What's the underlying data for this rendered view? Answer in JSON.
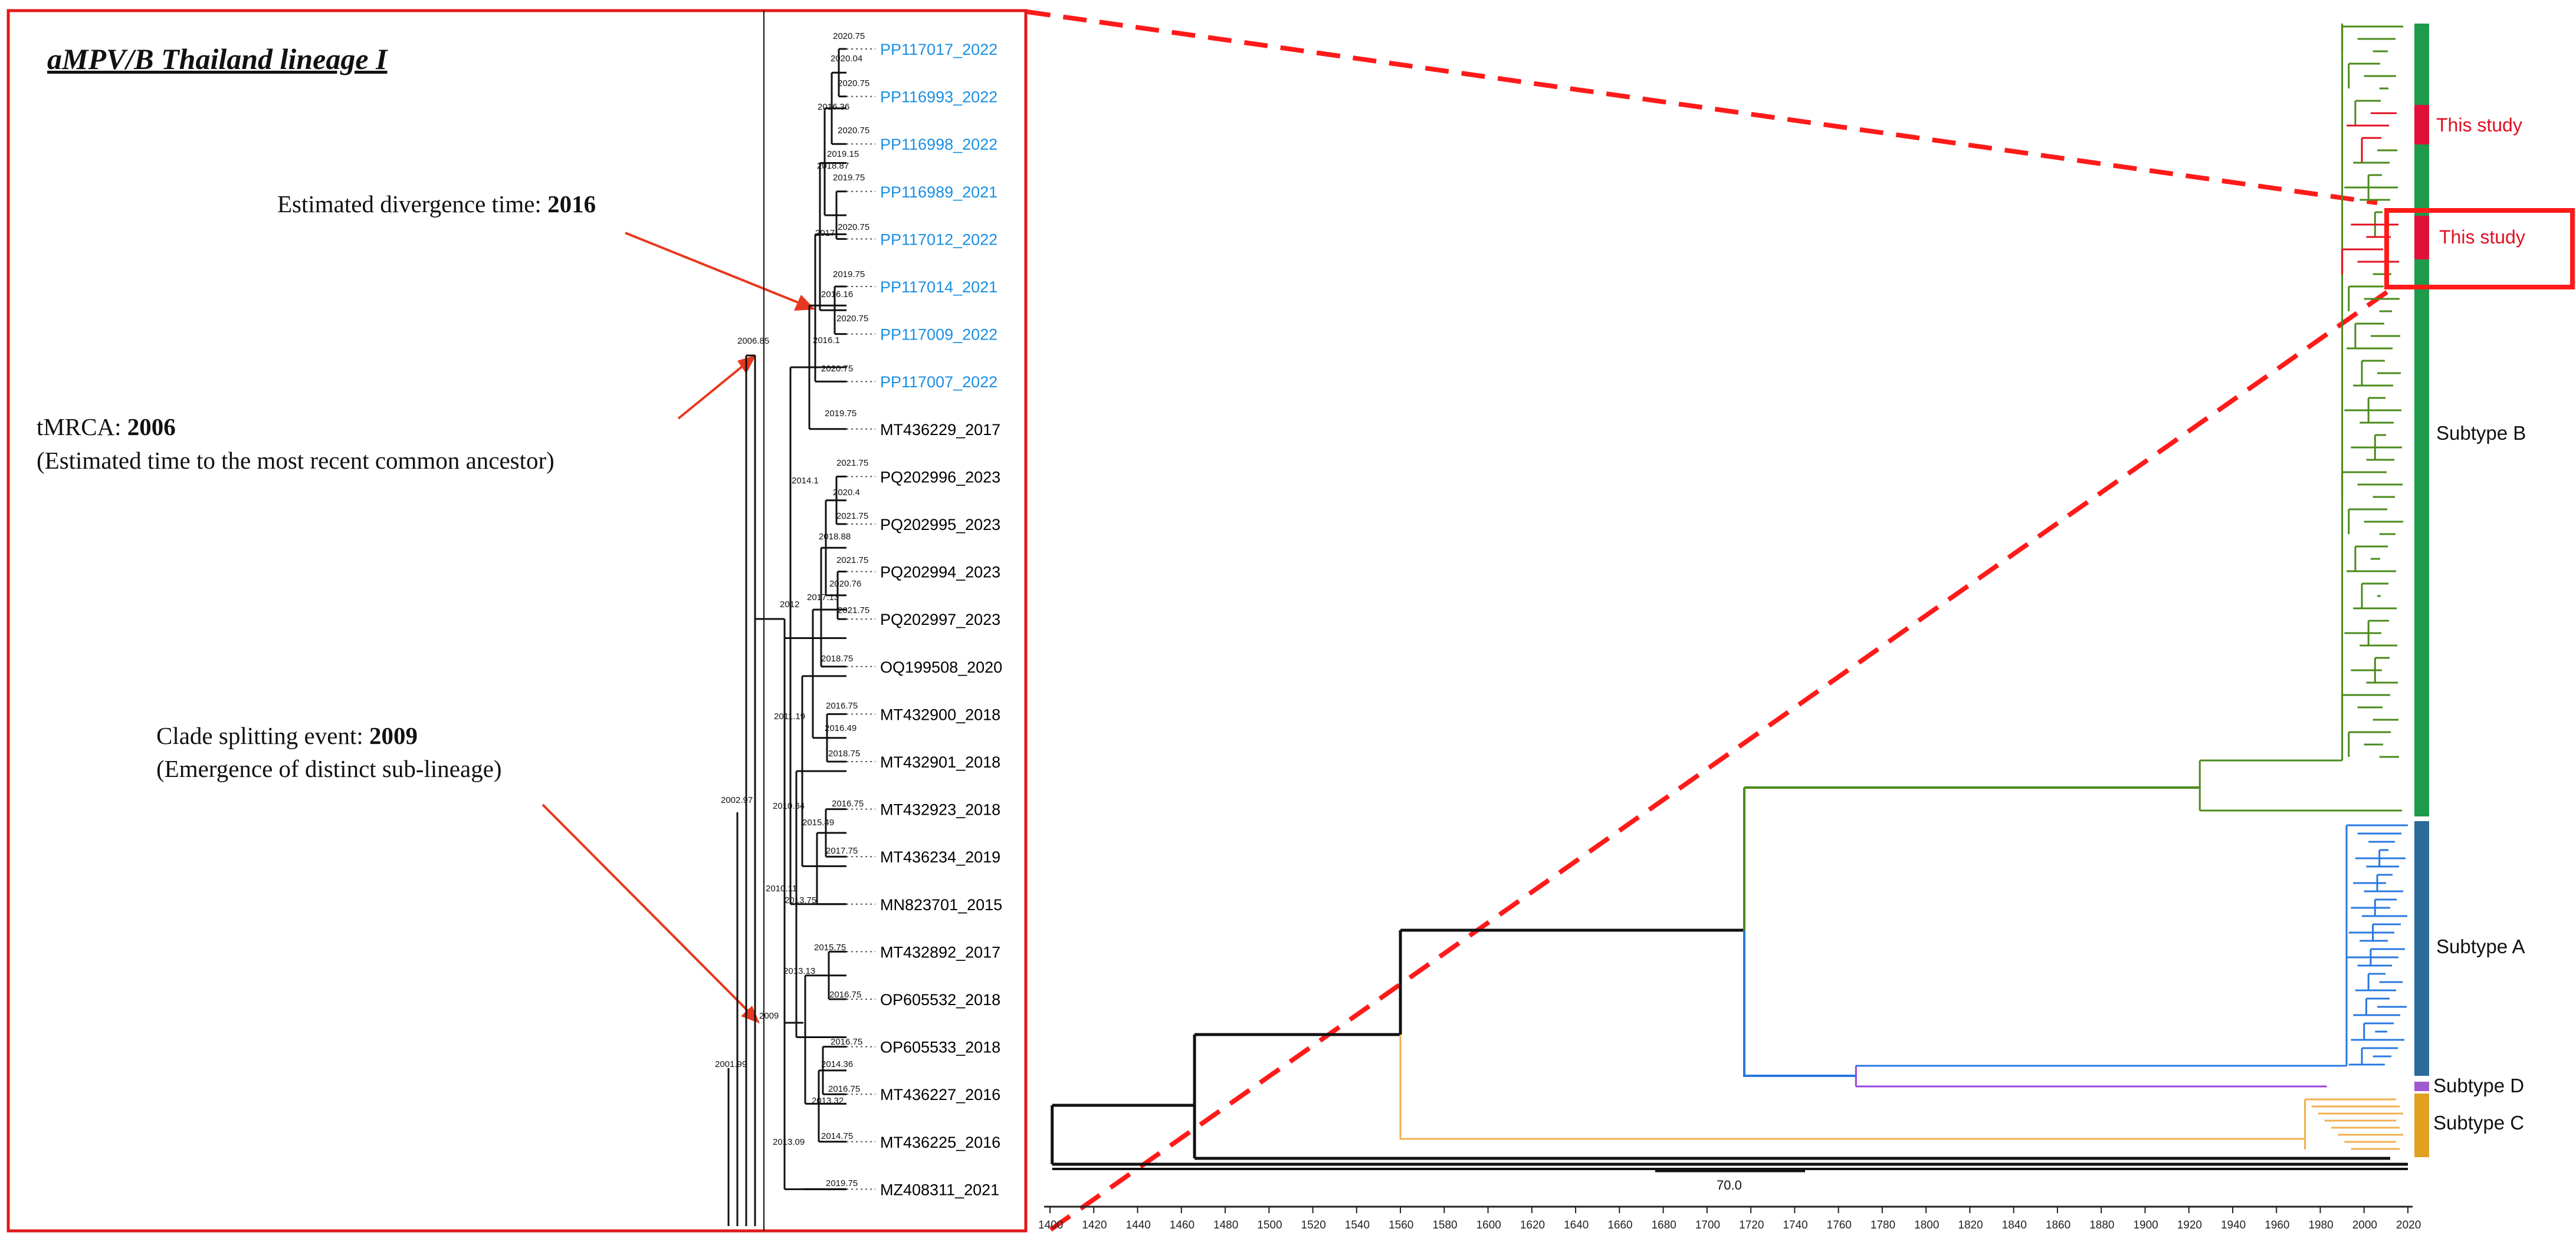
{
  "figure": {
    "left_panel": {
      "title": "aMPV/B Thailand lineage I",
      "annotations": {
        "divergence": {
          "label": "Estimated divergence time: ",
          "value": "2016"
        },
        "tmrca": {
          "label": "tMRCA: ",
          "value": "2006",
          "note": "(Estimated time to the most recent common ancestor)"
        },
        "clade_split": {
          "label": "Clade splitting event: ",
          "value": "2009",
          "note": "(Emergence of distinct sub-lineage)"
        }
      },
      "tips": [
        {
          "name": "PP117017_2022",
          "this_study": true
        },
        {
          "name": "PP116993_2022",
          "this_study": true
        },
        {
          "name": "PP116998_2022",
          "this_study": true
        },
        {
          "name": "PP116989_2021",
          "this_study": true
        },
        {
          "name": "PP117012_2022",
          "this_study": true
        },
        {
          "name": "PP117014_2021",
          "this_study": true
        },
        {
          "name": "PP117009_2022",
          "this_study": true
        },
        {
          "name": "PP117007_2022",
          "this_study": true
        },
        {
          "name": "MT436229_2017",
          "this_study": false
        },
        {
          "name": "PQ202996_2023",
          "this_study": false
        },
        {
          "name": "PQ202995_2023",
          "this_study": false
        },
        {
          "name": "PQ202994_2023",
          "this_study": false
        },
        {
          "name": "PQ202997_2023",
          "this_study": false
        },
        {
          "name": "OQ199508_2020",
          "this_study": false
        },
        {
          "name": "MT432900_2018",
          "this_study": false
        },
        {
          "name": "MT432901_2018",
          "this_study": false
        },
        {
          "name": "MT432923_2018",
          "this_study": false
        },
        {
          "name": "MT436234_2019",
          "this_study": false
        },
        {
          "name": "MN823701_2015",
          "this_study": false
        },
        {
          "name": "MT432892_2017",
          "this_study": false
        },
        {
          "name": "OP605532_2018",
          "this_study": false
        },
        {
          "name": "OP605533_2018",
          "this_study": false
        },
        {
          "name": "MT436227_2016",
          "this_study": false
        },
        {
          "name": "MT436225_2016",
          "this_study": false
        },
        {
          "name": "MZ408311_2021",
          "this_study": false
        }
      ],
      "node_labels": [
        "2020.75",
        "2020.04",
        "2020.75",
        "2016.36",
        "2020.75",
        "2019.15",
        "2018.87",
        "2019.75",
        "2020.75",
        "2017",
        "2019.75",
        "2016.16",
        "2020.75",
        "2016.1",
        "2020.75",
        "2006.85",
        "2019.75",
        "2021.75",
        "2014.1",
        "2020.4",
        "2021.75",
        "2018.88",
        "2021.75",
        "2020.76",
        "2017.13",
        "2021.75",
        "2012",
        "2018.75",
        "2016.75",
        "2011.19",
        "2016.49",
        "2018.75",
        "2002.97",
        "2016.75",
        "2010.64",
        "2015.49",
        "2017.75",
        "2010.11",
        "2013.75",
        "2015.75",
        "2013.13",
        "2009",
        "2016.75",
        "2016.75",
        "2014.36",
        "2001.99",
        "2016.75",
        "2013.32",
        "2013.09",
        "2014.75",
        "2019.75"
      ]
    },
    "right_panel": {
      "this_study_label_1": "This study",
      "this_study_label_2": "This study",
      "subtypes": [
        {
          "name": "Subtype B",
          "color": "#1e9a4b"
        },
        {
          "name": "Subtype A",
          "color": "#2a6b9c"
        },
        {
          "name": "Subtype D",
          "color": "#a05ad0"
        },
        {
          "name": "Subtype C",
          "color": "#e0a020"
        }
      ],
      "scale_bar_label": "70.0",
      "axis": {
        "min": 1400,
        "max": 2020,
        "step": 20,
        "tick_labels": [
          "1400",
          "1420",
          "1440",
          "1460",
          "1480",
          "1500",
          "1520",
          "1540",
          "1560",
          "1580",
          "1600",
          "1620",
          "1640",
          "1660",
          "1680",
          "1700",
          "1720",
          "1740",
          "1760",
          "1780",
          "1800",
          "1820",
          "1840",
          "1860",
          "1880",
          "1900",
          "1920",
          "1940",
          "1960",
          "1980",
          "2000",
          "2020"
        ]
      },
      "clade_colors": {
        "B": "#4a8a1a",
        "A": "#2878e0",
        "D": "#9a40e0",
        "C": "#f0b050",
        "root": "#111111",
        "this_study": "#e01020",
        "callout": "#ff1a1a"
      }
    }
  }
}
